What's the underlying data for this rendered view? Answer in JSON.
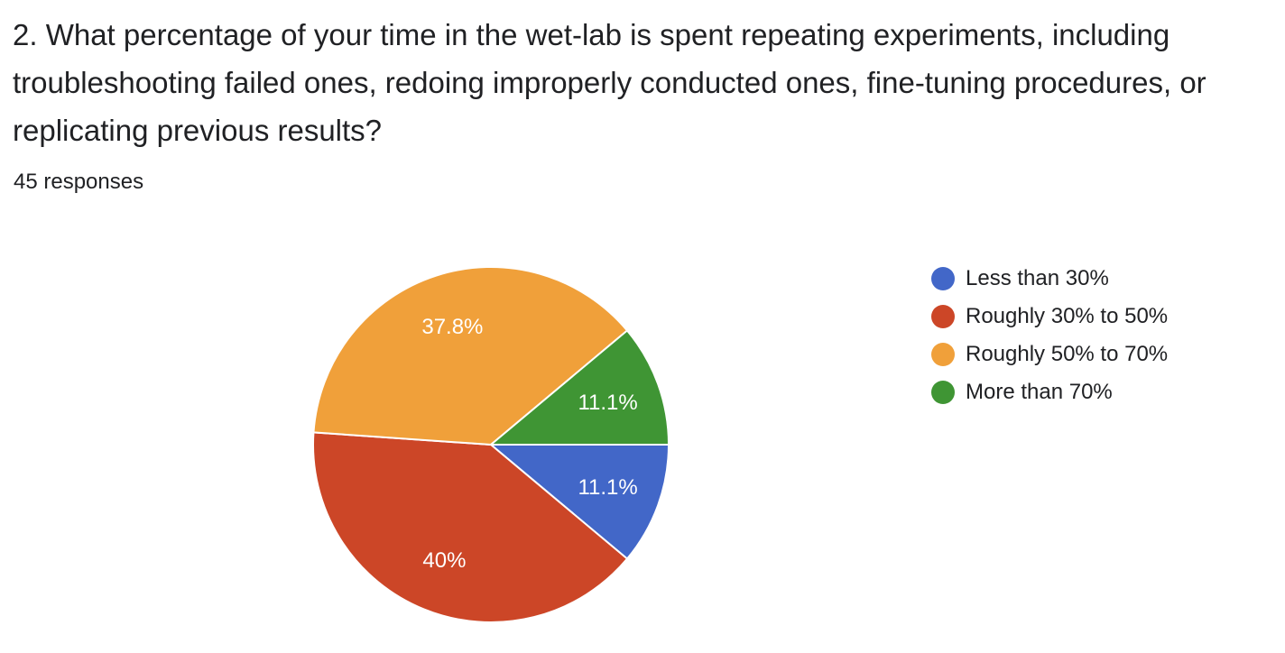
{
  "question": {
    "title": "2. What percentage of your time in the wet-lab is spent repeating experiments, including troubleshooting failed ones, redoing improperly conducted ones, fine-tuning procedures, or replicating previous results?",
    "response_count": "45 responses"
  },
  "chart_data": {
    "type": "pie",
    "title": "",
    "legend_position": "right",
    "slices": [
      {
        "name": "Less than 30%",
        "value": 11.1,
        "label": "11.1%",
        "color": "#4267c8"
      },
      {
        "name": "Roughly 30% to 50%",
        "value": 40.0,
        "label": "40%",
        "color": "#cc4627"
      },
      {
        "name": "Roughly 50% to 70%",
        "value": 37.8,
        "label": "37.8%",
        "color": "#f0a03a"
      },
      {
        "name": "More than 70%",
        "value": 11.1,
        "label": "11.1%",
        "color": "#3f9534"
      }
    ]
  }
}
